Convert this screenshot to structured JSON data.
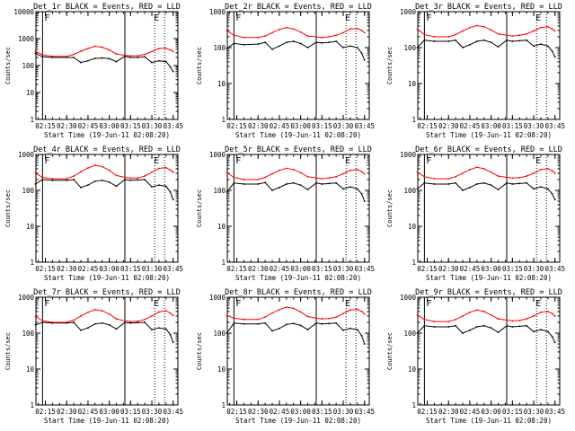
{
  "figure": {
    "time_axis_label": "Start Time (19-Jun-11 02:08:20)",
    "y_axis_label": "Counts/sec",
    "x_tick_labels": [
      "02:15",
      "02:30",
      "02:45",
      "03:00",
      "03:15",
      "03:30",
      "03:45"
    ],
    "y_tick_labels": [
      "1",
      "10",
      "100",
      "1000",
      "10000"
    ],
    "colors": {
      "events": "#000000",
      "lld": "#ff0000",
      "background": "#ffffff"
    }
  },
  "chart_data": [
    {
      "type": "line",
      "title": "Det_1r BLACK = Events, RED = LLD",
      "marker_left": "F",
      "marker_right": "E",
      "xlabel": "Start Time (19-Jun-11 02:08:20)",
      "ylabel": "Counts/sec",
      "yscale": "log",
      "ylim": [
        1,
        10000
      ],
      "xlim": [
        "02:08:20",
        "03:48:20"
      ],
      "xticks": [
        "02:15",
        "02:30",
        "02:45",
        "03:00",
        "03:15",
        "03:30",
        "03:45"
      ],
      "yticks": [
        "1",
        "10",
        "100",
        "1000",
        "10000"
      ],
      "solid_vlines": [
        "02:13",
        "03:11"
      ],
      "dotted_vlines": [
        "03:32",
        "03:39"
      ],
      "x": [
        "02:08",
        "02:13",
        "02:20",
        "02:30",
        "02:35",
        "02:40",
        "02:45",
        "02:50",
        "02:55",
        "03:00",
        "03:05",
        "03:11",
        "03:15",
        "03:20",
        "03:25",
        "03:30",
        "03:35",
        "03:40",
        "03:43",
        "03:45"
      ],
      "series": [
        {
          "name": "Events",
          "color": "#000000",
          "values": [
            280,
            210,
            200,
            200,
            200,
            130,
            150,
            185,
            190,
            180,
            140,
            220,
            200,
            200,
            210,
            130,
            150,
            140,
            90,
            60
          ]
        },
        {
          "name": "LLD",
          "color": "#ff0000",
          "values": [
            340,
            250,
            220,
            220,
            260,
            340,
            430,
            520,
            480,
            380,
            270,
            240,
            230,
            230,
            260,
            330,
            430,
            440,
            380,
            330
          ]
        }
      ]
    },
    {
      "type": "line",
      "title": "Det_2r BLACK = Events, RED = LLD",
      "marker_left": "F",
      "marker_right": "E",
      "xlabel": "Start Time (19-Jun-11 02:08:20)",
      "ylabel": "Counts/sec",
      "yscale": "log",
      "ylim": [
        1,
        1000
      ],
      "xlim": [
        "02:08:20",
        "03:48:20"
      ],
      "xticks": [
        "02:15",
        "02:30",
        "02:45",
        "03:00",
        "03:15",
        "03:30",
        "03:45"
      ],
      "yticks": [
        "1",
        "10",
        "100",
        "1000"
      ],
      "solid_vlines": [
        "02:13",
        "03:11"
      ],
      "dotted_vlines": [
        "03:32",
        "03:39"
      ],
      "x": [
        "02:08",
        "02:13",
        "02:20",
        "02:30",
        "02:35",
        "02:40",
        "02:45",
        "02:50",
        "02:55",
        "03:00",
        "03:05",
        "03:11",
        "03:15",
        "03:20",
        "03:25",
        "03:30",
        "03:35",
        "03:40",
        "03:43",
        "03:45"
      ],
      "series": [
        {
          "name": "Events",
          "color": "#000000",
          "values": [
            95,
            130,
            120,
            125,
            140,
            90,
            110,
            140,
            150,
            130,
            100,
            140,
            135,
            140,
            150,
            100,
            110,
            100,
            70,
            45
          ]
        },
        {
          "name": "LLD",
          "color": "#ff0000",
          "values": [
            300,
            220,
            190,
            190,
            210,
            260,
            320,
            360,
            330,
            270,
            210,
            200,
            190,
            200,
            220,
            260,
            330,
            340,
            300,
            260
          ]
        }
      ]
    },
    {
      "type": "line",
      "title": "Det_3r BLACK = Events, RED = LLD",
      "marker_left": "F",
      "marker_right": "E",
      "xlabel": "Start Time (19-Jun-11 02:08:20)",
      "ylabel": "Counts/sec",
      "yscale": "log",
      "ylim": [
        1,
        1000
      ],
      "xlim": [
        "02:08:20",
        "03:48:20"
      ],
      "xticks": [
        "02:15",
        "02:30",
        "02:45",
        "03:00",
        "03:15",
        "03:30",
        "03:45"
      ],
      "yticks": [
        "1",
        "10",
        "100",
        "1000"
      ],
      "solid_vlines": [
        "02:13",
        "03:11"
      ],
      "dotted_vlines": [
        "03:32",
        "03:39"
      ],
      "x": [
        "02:08",
        "02:13",
        "02:20",
        "02:30",
        "02:35",
        "02:40",
        "02:45",
        "02:50",
        "02:55",
        "03:00",
        "03:05",
        "03:11",
        "03:15",
        "03:20",
        "03:25",
        "03:30",
        "03:35",
        "03:40",
        "03:43",
        "03:45"
      ],
      "series": [
        {
          "name": "Events",
          "color": "#000000",
          "values": [
            100,
            160,
            150,
            150,
            160,
            100,
            120,
            150,
            160,
            140,
            105,
            160,
            150,
            155,
            160,
            110,
            125,
            110,
            80,
            55
          ]
        },
        {
          "name": "LLD",
          "color": "#ff0000",
          "values": [
            330,
            230,
            200,
            200,
            230,
            290,
            360,
            410,
            380,
            310,
            240,
            220,
            210,
            220,
            240,
            290,
            360,
            380,
            330,
            290
          ]
        }
      ]
    },
    {
      "type": "line",
      "title": "Det_4r BLACK = Events, RED = LLD",
      "marker_left": "F",
      "marker_right": "E",
      "xlabel": "Start Time (19-Jun-11 02:08:20)",
      "ylabel": "Counts/sec",
      "yscale": "log",
      "ylim": [
        1,
        1000
      ],
      "xlim": [
        "02:08:20",
        "03:48:20"
      ],
      "xticks": [
        "02:15",
        "02:30",
        "02:45",
        "03:00",
        "03:15",
        "03:30",
        "03:45"
      ],
      "yticks": [
        "1",
        "10",
        "100",
        "1000"
      ],
      "solid_vlines": [
        "02:13",
        "03:11"
      ],
      "dotted_vlines": [
        "03:32",
        "03:39"
      ],
      "x": [
        "02:08",
        "02:13",
        "02:20",
        "02:30",
        "02:35",
        "02:40",
        "02:45",
        "02:50",
        "02:55",
        "03:00",
        "03:05",
        "03:11",
        "03:15",
        "03:20",
        "03:25",
        "03:30",
        "03:35",
        "03:40",
        "03:43",
        "03:45"
      ],
      "series": [
        {
          "name": "Events",
          "color": "#000000",
          "values": [
            150,
            200,
            190,
            190,
            200,
            120,
            140,
            180,
            190,
            170,
            130,
            200,
            190,
            195,
            200,
            125,
            140,
            130,
            90,
            55
          ]
        },
        {
          "name": "LLD",
          "color": "#ff0000",
          "values": [
            300,
            230,
            210,
            210,
            250,
            330,
            420,
            500,
            460,
            360,
            260,
            230,
            220,
            220,
            250,
            320,
            410,
            430,
            370,
            320
          ]
        }
      ]
    },
    {
      "type": "line",
      "title": "Det_5r BLACK = Events, RED = LLD",
      "marker_left": "F",
      "marker_right": "E",
      "xlabel": "Start Time (19-Jun-11 02:08:20)",
      "ylabel": "Counts/sec",
      "yscale": "log",
      "ylim": [
        1,
        1000
      ],
      "xlim": [
        "02:08:20",
        "03:48:20"
      ],
      "xticks": [
        "02:15",
        "02:30",
        "02:45",
        "03:00",
        "03:15",
        "03:30",
        "03:45"
      ],
      "yticks": [
        "1",
        "10",
        "100",
        "1000"
      ],
      "solid_vlines": [
        "02:13",
        "03:11"
      ],
      "dotted_vlines": [
        "03:32",
        "03:39"
      ],
      "x": [
        "02:08",
        "02:13",
        "02:20",
        "02:30",
        "02:35",
        "02:40",
        "02:45",
        "02:50",
        "02:55",
        "03:00",
        "03:05",
        "03:11",
        "03:15",
        "03:20",
        "03:25",
        "03:30",
        "03:35",
        "03:40",
        "03:43",
        "03:45"
      ],
      "series": [
        {
          "name": "Events",
          "color": "#000000",
          "values": [
            90,
            160,
            150,
            150,
            165,
            100,
            120,
            150,
            160,
            140,
            105,
            160,
            150,
            155,
            160,
            110,
            125,
            110,
            80,
            50
          ]
        },
        {
          "name": "LLD",
          "color": "#ff0000",
          "values": [
            310,
            230,
            200,
            200,
            230,
            290,
            360,
            410,
            380,
            310,
            240,
            220,
            210,
            220,
            240,
            290,
            360,
            380,
            330,
            290
          ]
        }
      ]
    },
    {
      "type": "line",
      "title": "Det_6r BLACK = Events, RED = LLD",
      "marker_left": "F",
      "marker_right": "E",
      "xlabel": "Start Time (19-Jun-11 02:08:20)",
      "ylabel": "Counts/sec",
      "yscale": "log",
      "ylim": [
        1,
        1000
      ],
      "xlim": [
        "02:08:20",
        "03:48:20"
      ],
      "xticks": [
        "02:15",
        "02:30",
        "02:45",
        "03:00",
        "03:15",
        "03:30",
        "03:45"
      ],
      "yticks": [
        "1",
        "10",
        "100",
        "1000"
      ],
      "solid_vlines": [
        "02:13",
        "03:11"
      ],
      "dotted_vlines": [
        "03:32",
        "03:39"
      ],
      "x": [
        "02:08",
        "02:13",
        "02:20",
        "02:30",
        "02:35",
        "02:40",
        "02:45",
        "02:50",
        "02:55",
        "03:00",
        "03:05",
        "03:11",
        "03:15",
        "03:20",
        "03:25",
        "03:30",
        "03:35",
        "03:40",
        "03:43",
        "03:45"
      ],
      "series": [
        {
          "name": "Events",
          "color": "#000000",
          "values": [
            110,
            160,
            150,
            150,
            160,
            100,
            120,
            150,
            160,
            140,
            105,
            160,
            150,
            155,
            160,
            110,
            125,
            110,
            80,
            55
          ]
        },
        {
          "name": "LLD",
          "color": "#ff0000",
          "values": [
            320,
            240,
            210,
            210,
            240,
            300,
            380,
            440,
            400,
            320,
            250,
            230,
            220,
            225,
            250,
            300,
            380,
            400,
            350,
            300
          ]
        }
      ]
    },
    {
      "type": "line",
      "title": "Det_7r BLACK = Events, RED = LLD",
      "marker_left": "F",
      "marker_right": "E",
      "xlabel": "Start Time (19-Jun-11 02:08:20)",
      "ylabel": "Counts/sec",
      "yscale": "log",
      "ylim": [
        1,
        1000
      ],
      "xlim": [
        "02:08:20",
        "03:48:20"
      ],
      "xticks": [
        "02:15",
        "02:30",
        "02:45",
        "03:00",
        "03:15",
        "03:30",
        "03:45"
      ],
      "yticks": [
        "1",
        "10",
        "100",
        "1000"
      ],
      "solid_vlines": [
        "02:13",
        "03:11"
      ],
      "dotted_vlines": [
        "03:32",
        "03:39"
      ],
      "x": [
        "02:08",
        "02:13",
        "02:20",
        "02:30",
        "02:35",
        "02:40",
        "02:45",
        "02:50",
        "02:55",
        "03:00",
        "03:05",
        "03:11",
        "03:15",
        "03:20",
        "03:25",
        "03:30",
        "03:35",
        "03:40",
        "03:43",
        "03:45"
      ],
      "series": [
        {
          "name": "Events",
          "color": "#000000",
          "values": [
            170,
            200,
            190,
            190,
            200,
            120,
            140,
            180,
            190,
            170,
            130,
            200,
            190,
            195,
            200,
            125,
            140,
            130,
            90,
            55
          ]
        },
        {
          "name": "LLD",
          "color": "#ff0000",
          "values": [
            290,
            220,
            200,
            200,
            230,
            300,
            380,
            450,
            420,
            340,
            250,
            220,
            210,
            215,
            240,
            300,
            390,
            420,
            360,
            310
          ]
        }
      ]
    },
    {
      "type": "line",
      "title": "Det_8r BLACK = Events, RED = LLD",
      "marker_left": "F",
      "marker_right": "E",
      "xlabel": "Start Time (19-Jun-11 02:08:20)",
      "ylabel": "Counts/sec",
      "yscale": "log",
      "ylim": [
        1,
        1000
      ],
      "xlim": [
        "02:08:20",
        "03:48:20"
      ],
      "xticks": [
        "02:15",
        "02:30",
        "02:45",
        "03:00",
        "03:15",
        "03:30",
        "03:45"
      ],
      "yticks": [
        "1",
        "10",
        "100",
        "1000"
      ],
      "solid_vlines": [
        "02:13",
        "03:11"
      ],
      "dotted_vlines": [
        "03:32",
        "03:39"
      ],
      "x": [
        "02:08",
        "02:13",
        "02:20",
        "02:30",
        "02:35",
        "02:40",
        "02:45",
        "02:50",
        "02:55",
        "03:00",
        "03:05",
        "03:11",
        "03:15",
        "03:20",
        "03:25",
        "03:30",
        "03:35",
        "03:40",
        "03:43",
        "03:45"
      ],
      "series": [
        {
          "name": "Events",
          "color": "#000000",
          "values": [
            100,
            190,
            180,
            180,
            190,
            115,
            135,
            175,
            185,
            165,
            125,
            190,
            180,
            185,
            190,
            120,
            135,
            125,
            85,
            50
          ]
        },
        {
          "name": "LLD",
          "color": "#ff0000",
          "values": [
            310,
            260,
            240,
            240,
            280,
            360,
            450,
            530,
            490,
            390,
            290,
            260,
            250,
            255,
            280,
            350,
            440,
            460,
            400,
            340
          ]
        }
      ]
    },
    {
      "type": "line",
      "title": "Det_9r BLACK = Events, RED = LLD",
      "marker_left": "F",
      "marker_right": "E",
      "xlabel": "Start Time (19-Jun-11 02:08:20)",
      "ylabel": "Counts/sec",
      "yscale": "log",
      "ylim": [
        1,
        1000
      ],
      "xlim": [
        "02:08:20",
        "03:48:20"
      ],
      "xticks": [
        "02:15",
        "02:30",
        "02:45",
        "03:00",
        "03:15",
        "03:30",
        "03:45"
      ],
      "yticks": [
        "1",
        "10",
        "100",
        "1000"
      ],
      "solid_vlines": [
        "02:13",
        "03:11"
      ],
      "dotted_vlines": [
        "03:32",
        "03:39"
      ],
      "x": [
        "02:08",
        "02:13",
        "02:20",
        "02:30",
        "02:35",
        "02:40",
        "02:45",
        "02:50",
        "02:55",
        "03:00",
        "03:05",
        "03:11",
        "03:15",
        "03:20",
        "03:25",
        "03:30",
        "03:35",
        "03:40",
        "03:43",
        "03:45"
      ],
      "series": [
        {
          "name": "Events",
          "color": "#000000",
          "values": [
            100,
            160,
            150,
            150,
            160,
            100,
            120,
            150,
            160,
            140,
            105,
            160,
            150,
            155,
            160,
            110,
            125,
            110,
            80,
            55
          ]
        },
        {
          "name": "LLD",
          "color": "#ff0000",
          "values": [
            320,
            240,
            210,
            210,
            240,
            300,
            380,
            440,
            400,
            320,
            250,
            230,
            220,
            225,
            250,
            300,
            380,
            400,
            350,
            300
          ]
        }
      ]
    }
  ]
}
